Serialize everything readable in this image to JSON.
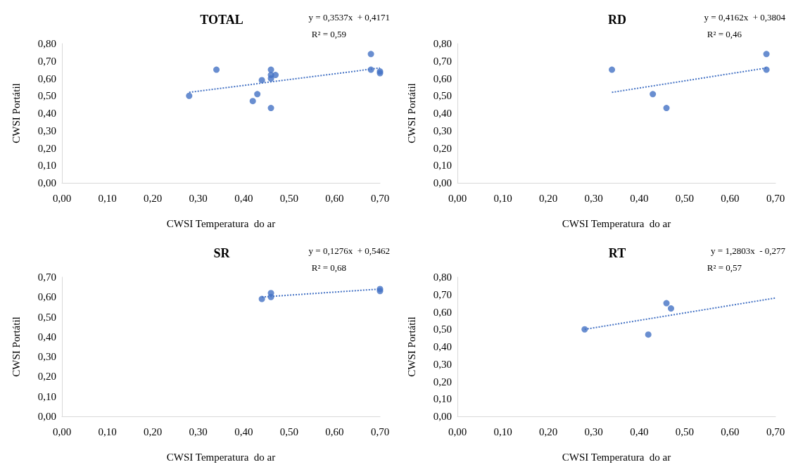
{
  "chart_data": [
    {
      "type": "scatter",
      "title": "TOTAL",
      "xlabel": "CWSI Temperatura  do ar",
      "ylabel": "CWSI Portátil",
      "annotations": [
        "y = 0,3537x  + 0,4171",
        "R² = 0,59"
      ],
      "grid": false,
      "marker": "circle",
      "xlim": [
        0,
        0.7
      ],
      "xticks": [
        {
          "value": 0,
          "label": "0,00"
        },
        {
          "value": 0.1,
          "label": "0,10"
        },
        {
          "value": 0.2,
          "label": "0,20"
        },
        {
          "value": 0.3,
          "label": "0,30"
        },
        {
          "value": 0.4,
          "label": "0,40"
        },
        {
          "value": 0.5,
          "label": "0,50"
        },
        {
          "value": 0.6,
          "label": "0,60"
        },
        {
          "value": 0.7,
          "label": "0,70"
        }
      ],
      "ylim": [
        0,
        0.8
      ],
      "yticks": [
        {
          "value": 0,
          "label": "0,00"
        },
        {
          "value": 0.1,
          "label": "0,10"
        },
        {
          "value": 0.2,
          "label": "0,20"
        },
        {
          "value": 0.3,
          "label": "0,30"
        },
        {
          "value": 0.4,
          "label": "0,40"
        },
        {
          "value": 0.5,
          "label": "0,50"
        },
        {
          "value": 0.6,
          "label": "0,60"
        },
        {
          "value": 0.7,
          "label": "0,70"
        },
        {
          "value": 0.8,
          "label": "0,80"
        }
      ],
      "series": [
        {
          "color": "#4472c4",
          "x": [
            0.28,
            0.34,
            0.42,
            0.43,
            0.44,
            0.46,
            0.46,
            0.46,
            0.46,
            0.47,
            0.68,
            0.68,
            0.7,
            0.7
          ],
          "values": [
            0.5,
            0.65,
            0.47,
            0.51,
            0.59,
            0.43,
            0.6,
            0.62,
            0.65,
            0.62,
            0.74,
            0.65,
            0.64,
            0.63
          ]
        },
        {
          "type": "line",
          "color": "#4472c4",
          "marker": "none",
          "line_style": "dotted",
          "x": [
            0.28,
            0.7
          ],
          "values": [
            0.52,
            0.66
          ]
        }
      ]
    },
    {
      "type": "scatter",
      "title": "RD",
      "xlabel": "CWSI Temperatura  do ar",
      "ylabel": "CWSI Portátil",
      "annotations": [
        "y = 0,4162x  + 0,3804",
        "R² = 0,46"
      ],
      "grid": false,
      "marker": "circle",
      "xlim": [
        0,
        0.7
      ],
      "xticks": [
        {
          "value": 0,
          "label": "0,00"
        },
        {
          "value": 0.1,
          "label": "0,10"
        },
        {
          "value": 0.2,
          "label": "0,20"
        },
        {
          "value": 0.3,
          "label": "0,30"
        },
        {
          "value": 0.4,
          "label": "0,40"
        },
        {
          "value": 0.5,
          "label": "0,50"
        },
        {
          "value": 0.6,
          "label": "0,60"
        },
        {
          "value": 0.7,
          "label": "0,70"
        }
      ],
      "ylim": [
        0,
        0.8
      ],
      "yticks": [
        {
          "value": 0,
          "label": "0,00"
        },
        {
          "value": 0.1,
          "label": "0,10"
        },
        {
          "value": 0.2,
          "label": "0,20"
        },
        {
          "value": 0.3,
          "label": "0,30"
        },
        {
          "value": 0.4,
          "label": "0,40"
        },
        {
          "value": 0.5,
          "label": "0,50"
        },
        {
          "value": 0.6,
          "label": "0,60"
        },
        {
          "value": 0.7,
          "label": "0,70"
        },
        {
          "value": 0.8,
          "label": "0,80"
        }
      ],
      "series": [
        {
          "color": "#4472c4",
          "x": [
            0.34,
            0.43,
            0.46,
            0.68,
            0.68
          ],
          "values": [
            0.65,
            0.51,
            0.43,
            0.74,
            0.65
          ]
        },
        {
          "type": "line",
          "color": "#4472c4",
          "marker": "none",
          "line_style": "dotted",
          "x": [
            0.34,
            0.68
          ],
          "values": [
            0.52,
            0.66
          ]
        }
      ]
    },
    {
      "type": "scatter",
      "title": "SR",
      "xlabel": "CWSI Temperatura  do ar",
      "ylabel": "CWSI Portátil",
      "annotations": [
        "y = 0,1276x  + 0,5462",
        "R² = 0,68"
      ],
      "grid": false,
      "marker": "circle",
      "xlim": [
        0,
        0.7
      ],
      "xticks": [
        {
          "value": 0,
          "label": "0,00"
        },
        {
          "value": 0.1,
          "label": "0,10"
        },
        {
          "value": 0.2,
          "label": "0,20"
        },
        {
          "value": 0.3,
          "label": "0,30"
        },
        {
          "value": 0.4,
          "label": "0,40"
        },
        {
          "value": 0.5,
          "label": "0,50"
        },
        {
          "value": 0.6,
          "label": "0,60"
        },
        {
          "value": 0.7,
          "label": "0,70"
        }
      ],
      "ylim": [
        0,
        0.7
      ],
      "yticks": [
        {
          "value": 0,
          "label": "0,00"
        },
        {
          "value": 0.1,
          "label": "0,10"
        },
        {
          "value": 0.2,
          "label": "0,20"
        },
        {
          "value": 0.3,
          "label": "0,30"
        },
        {
          "value": 0.4,
          "label": "0,40"
        },
        {
          "value": 0.5,
          "label": "0,50"
        },
        {
          "value": 0.6,
          "label": "0,60"
        },
        {
          "value": 0.7,
          "label": "0,70"
        }
      ],
      "series": [
        {
          "color": "#4472c4",
          "x": [
            0.44,
            0.46,
            0.46,
            0.7,
            0.7
          ],
          "values": [
            0.59,
            0.6,
            0.62,
            0.64,
            0.63
          ]
        },
        {
          "type": "line",
          "color": "#4472c4",
          "marker": "none",
          "line_style": "dotted",
          "x": [
            0.44,
            0.7
          ],
          "values": [
            0.6,
            0.64
          ]
        }
      ]
    },
    {
      "type": "scatter",
      "title": "RT",
      "xlabel": "CWSI Temperatura  do ar",
      "ylabel": "CWSI Portátil",
      "annotations": [
        "y = 1,2803x  - 0,277",
        "R² = 0,57"
      ],
      "grid": false,
      "marker": "circle",
      "xlim": [
        0,
        0.7
      ],
      "xticks": [
        {
          "value": 0,
          "label": "0,00"
        },
        {
          "value": 0.1,
          "label": "0,10"
        },
        {
          "value": 0.2,
          "label": "0,20"
        },
        {
          "value": 0.3,
          "label": "0,30"
        },
        {
          "value": 0.4,
          "label": "0,40"
        },
        {
          "value": 0.5,
          "label": "0,50"
        },
        {
          "value": 0.6,
          "label": "0,60"
        },
        {
          "value": 0.7,
          "label": "0,70"
        }
      ],
      "ylim": [
        0,
        0.8
      ],
      "yticks": [
        {
          "value": 0,
          "label": "0,00"
        },
        {
          "value": 0.1,
          "label": "0,10"
        },
        {
          "value": 0.2,
          "label": "0,20"
        },
        {
          "value": 0.3,
          "label": "0,30"
        },
        {
          "value": 0.4,
          "label": "0,40"
        },
        {
          "value": 0.5,
          "label": "0,50"
        },
        {
          "value": 0.6,
          "label": "0,60"
        },
        {
          "value": 0.7,
          "label": "0,70"
        },
        {
          "value": 0.8,
          "label": "0,80"
        }
      ],
      "series": [
        {
          "color": "#4472c4",
          "x": [
            0.28,
            0.42,
            0.46,
            0.47
          ],
          "values": [
            0.5,
            0.47,
            0.65,
            0.62
          ]
        },
        {
          "type": "line",
          "color": "#4472c4",
          "marker": "none",
          "line_style": "dotted",
          "x": [
            0.28,
            0.7
          ],
          "values": [
            0.5,
            0.68
          ]
        }
      ]
    }
  ]
}
